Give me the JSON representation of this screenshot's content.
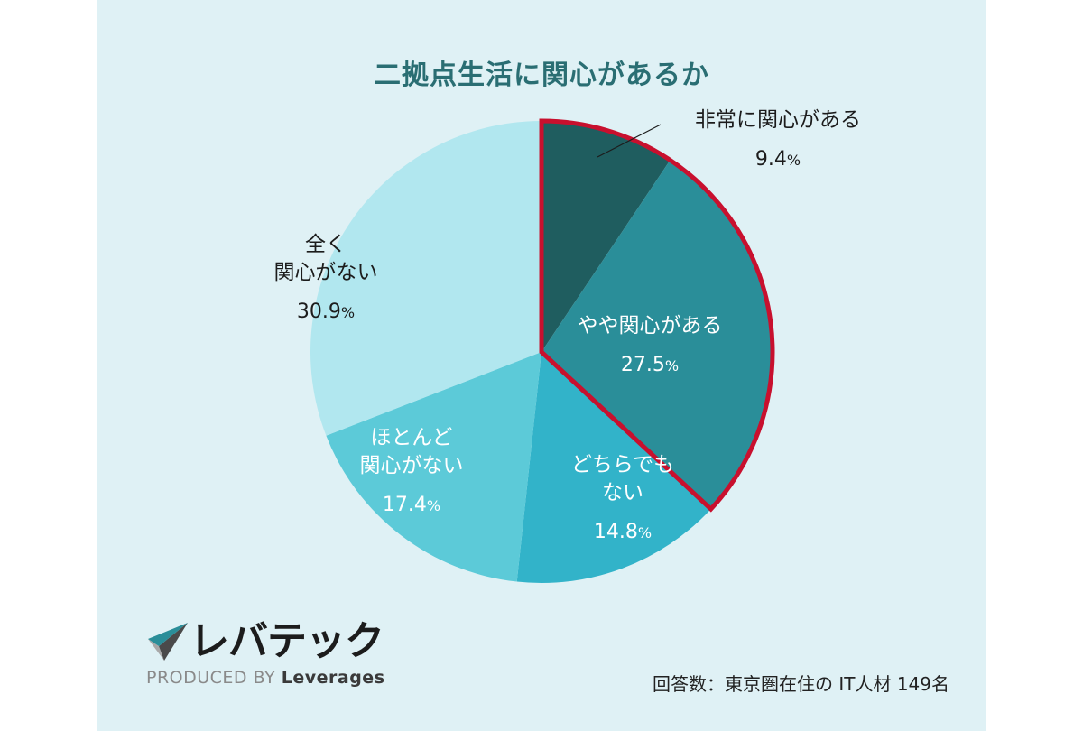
{
  "chart_data": {
    "type": "pie",
    "title": "二拠点生活に関心があるか",
    "slices": [
      {
        "label": "非常に関心がある",
        "value": 9.4,
        "display": "9.4",
        "color": "#1f5d5f",
        "text_color": "#1c1c1c"
      },
      {
        "label": "やや関心がある",
        "value": 27.5,
        "display": "27.5",
        "color": "#2a8e99",
        "text_color": "#ffffff"
      },
      {
        "label": "どちらでもない",
        "value": 14.8,
        "display": "14.8",
        "color": "#32b3c9",
        "text_color": "#ffffff"
      },
      {
        "label": "ほとんど関心がない",
        "value": 17.4,
        "display": "17.4",
        "color": "#5ccad8",
        "text_color": "#ffffff"
      },
      {
        "label": "全く関心がない",
        "value": 30.9,
        "display": "30.9",
        "color": "#b1e7ef",
        "text_color": "#1c1c1c"
      }
    ],
    "label_lines": [
      [
        "非常に関心がある"
      ],
      [
        "やや関心がある"
      ],
      [
        "どちらでも",
        "ない"
      ],
      [
        "ほとんど",
        "関心がない"
      ],
      [
        "全く",
        "関心がない"
      ]
    ],
    "unit": "%",
    "highlight": {
      "slices": [
        0,
        1
      ],
      "color": "#c8102e"
    }
  },
  "logo": {
    "brand": "レバテック",
    "tagline_prefix": "PRODUCED BY",
    "tagline_brand": "Leverages"
  },
  "footnote": "回答数：東京圏在住の IT人材 149名"
}
